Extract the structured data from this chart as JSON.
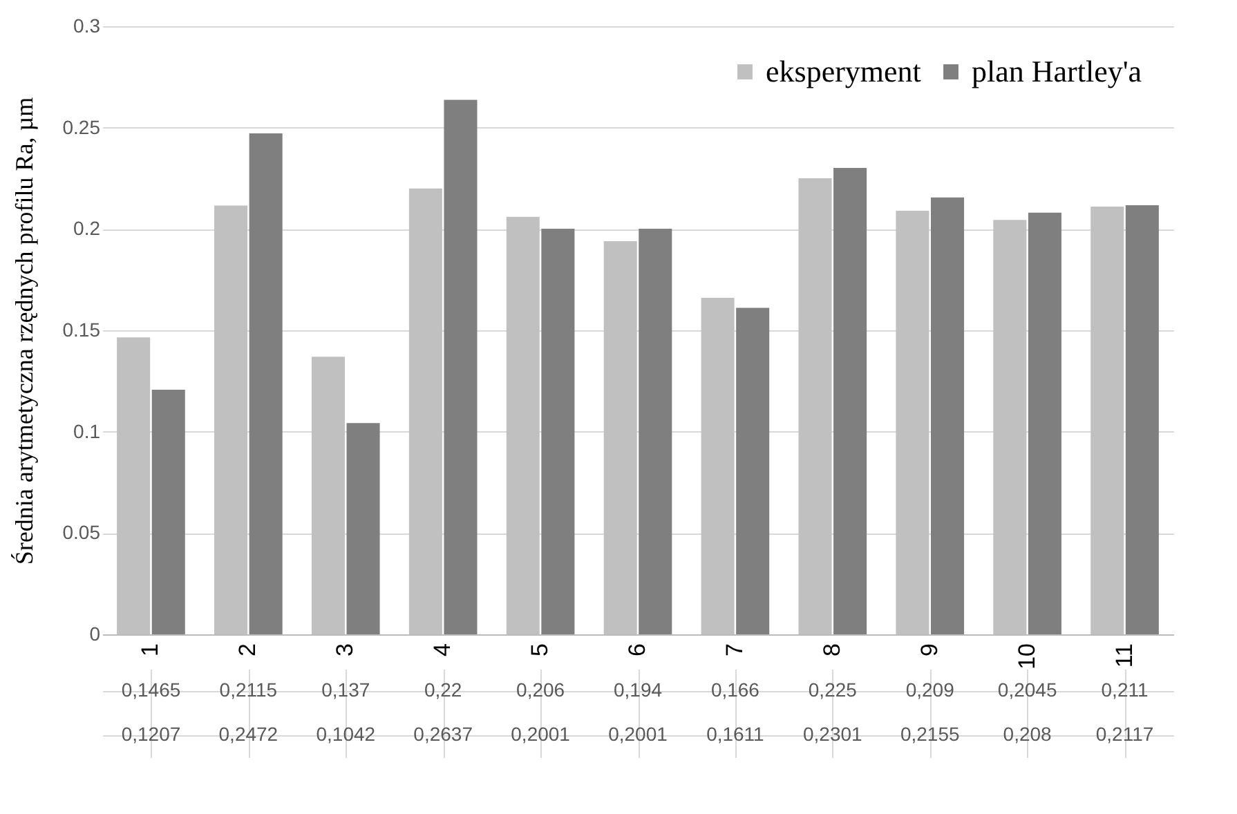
{
  "chart_data": {
    "type": "bar",
    "ylabel": "Średnia arytmetyczna rzędnych profilu Ra, µm",
    "categories": [
      "1",
      "2",
      "3",
      "4",
      "5",
      "6",
      "7",
      "8",
      "9",
      "10",
      "11"
    ],
    "series": [
      {
        "name": "eksperyment",
        "color": "#c0c0c0",
        "values": [
          0.1465,
          0.2115,
          0.137,
          0.22,
          0.206,
          0.194,
          0.166,
          0.225,
          0.209,
          0.2045,
          0.211
        ],
        "value_labels": [
          "0,1465",
          "0,2115",
          "0,137",
          "0,22",
          "0,206",
          "0,194",
          "0,166",
          "0,225",
          "0,209",
          "0,2045",
          "0,211"
        ]
      },
      {
        "name": "plan Hartley'a",
        "color": "#7f7f7f",
        "values": [
          0.1207,
          0.2472,
          0.1042,
          0.2637,
          0.2001,
          0.2001,
          0.1611,
          0.2301,
          0.2155,
          0.208,
          0.2117
        ],
        "value_labels": [
          "0,1207",
          "0,2472",
          "0,1042",
          "0,2637",
          "0,2001",
          "0,2001",
          "0,1611",
          "0,2301",
          "0,2155",
          "0,208",
          "0,2117"
        ]
      }
    ],
    "ylim": [
      0,
      0.3
    ],
    "yticks": [
      0,
      0.05,
      0.1,
      0.15,
      0.2,
      0.25,
      0.3
    ],
    "grid": "y",
    "legend": "top right"
  }
}
